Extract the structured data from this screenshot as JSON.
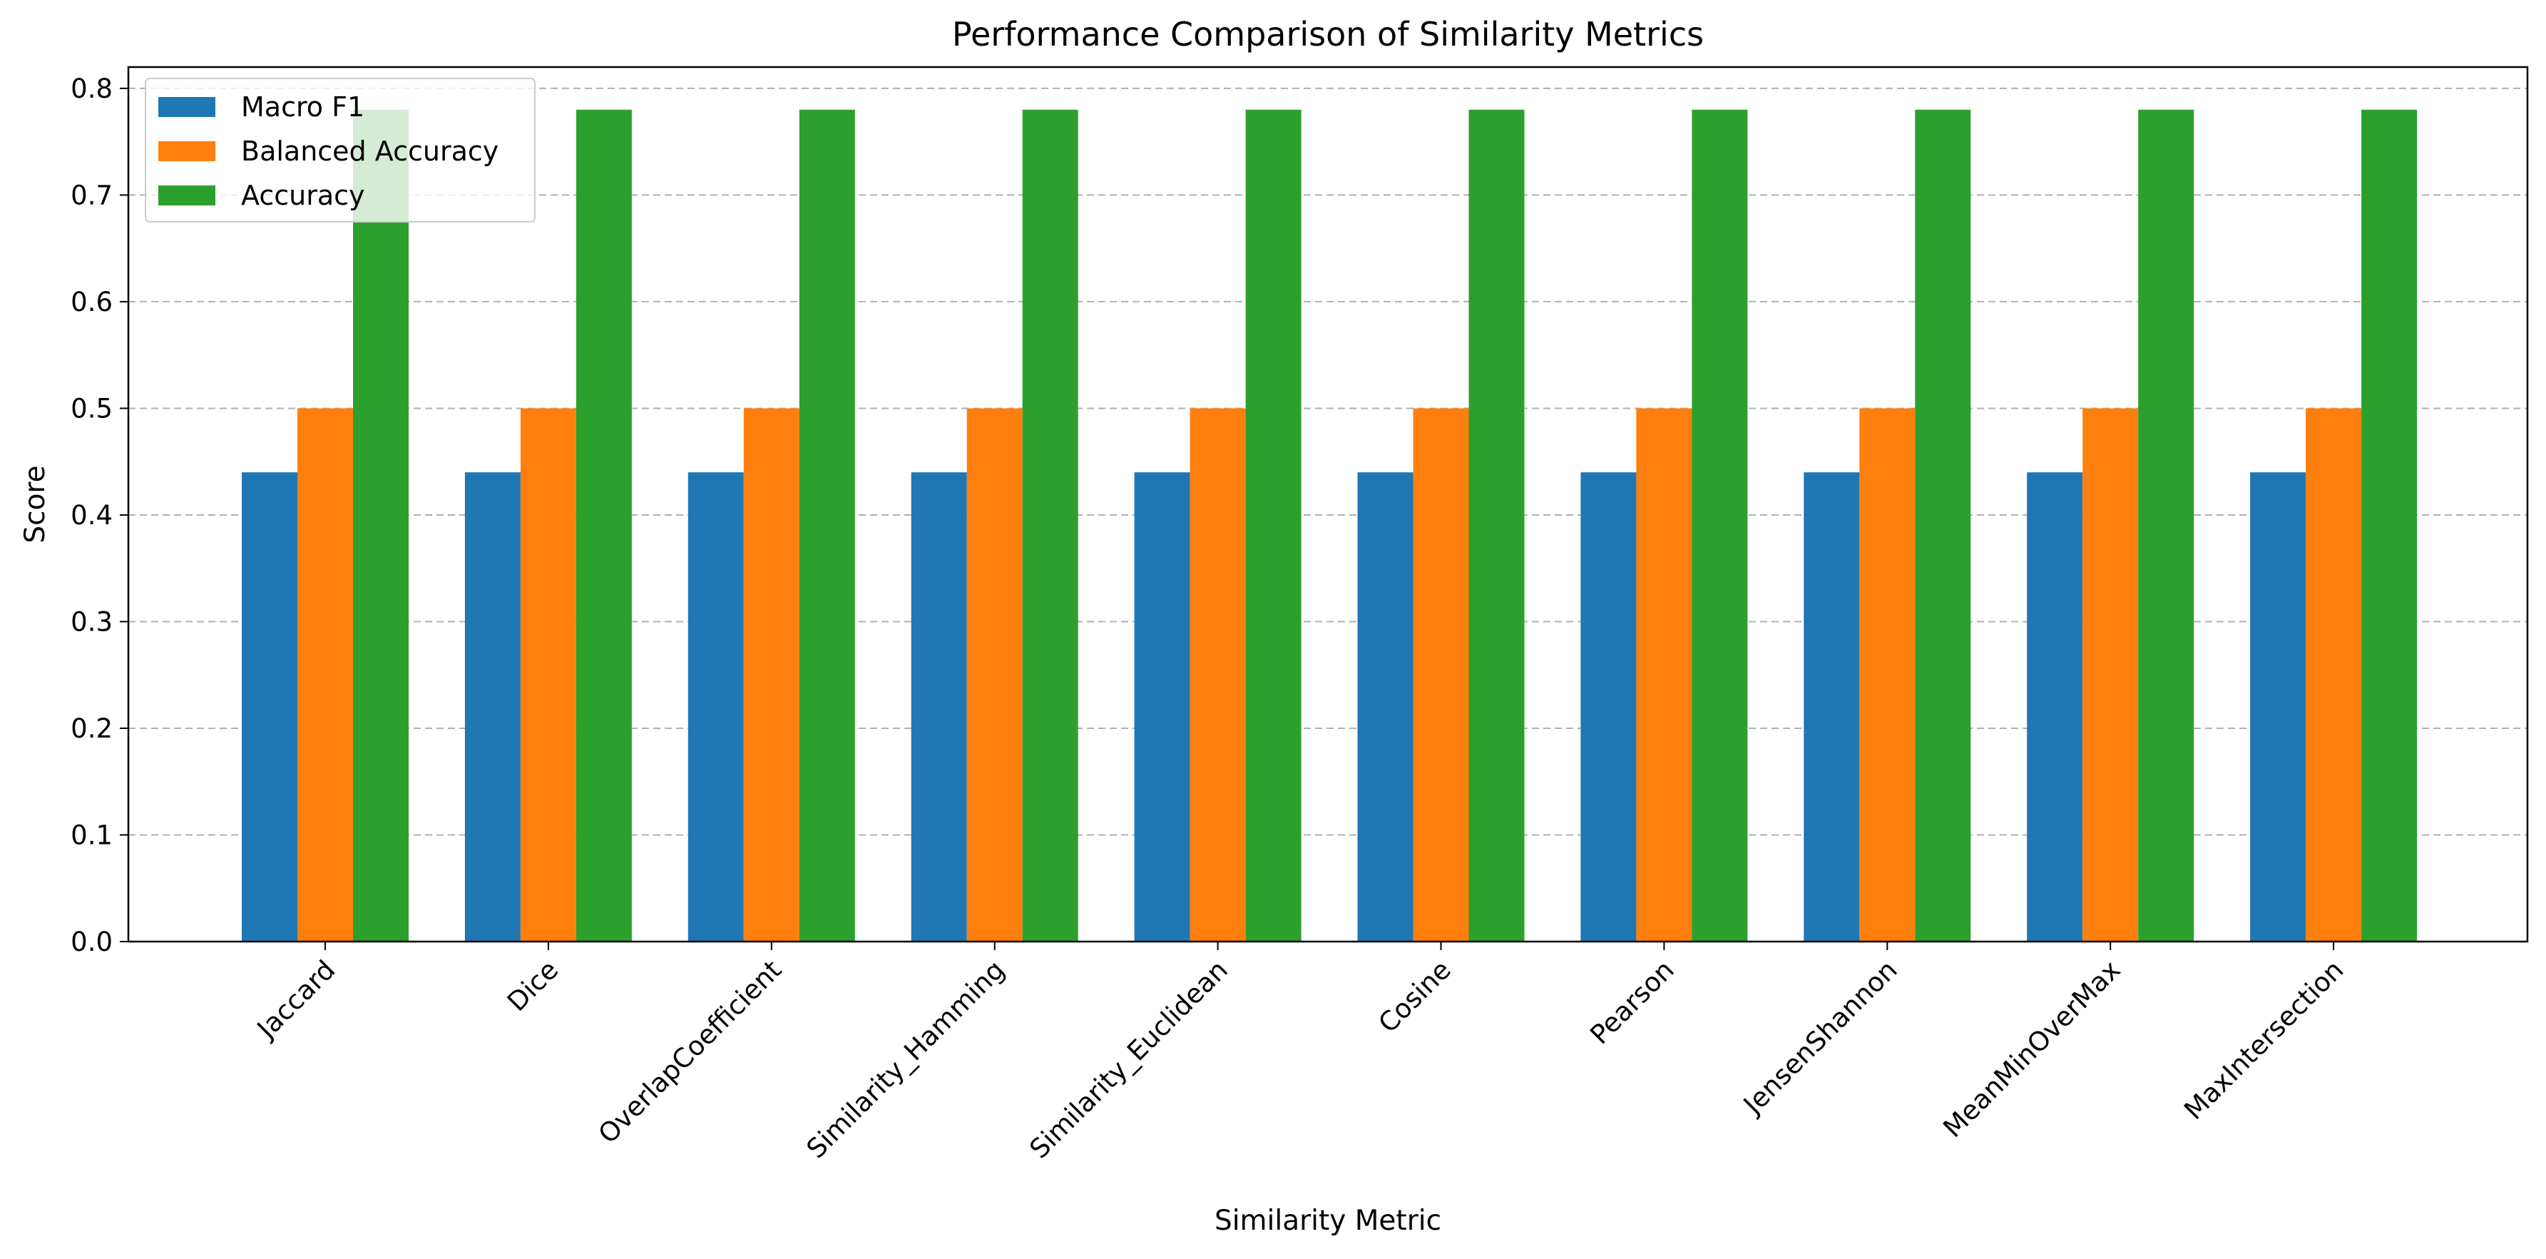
{
  "chart_data": {
    "type": "bar",
    "title": "Performance Comparison of Similarity Metrics",
    "xlabel": "Similarity Metric",
    "ylabel": "Score",
    "ylim": [
      0,
      0.82
    ],
    "yticks": [
      "0.0",
      "0.1",
      "0.2",
      "0.3",
      "0.4",
      "0.5",
      "0.6",
      "0.7",
      "0.8"
    ],
    "grid": "y-dashed",
    "legend_position": "top-left",
    "categories": [
      "Jaccard",
      "Dice",
      "OverlapCoefficient",
      "Similarity_Hamming",
      "Similarity_Euclidean",
      "Cosine",
      "Pearson",
      "JensenShannon",
      "MeanMinOverMax",
      "MaxIntersection"
    ],
    "series": [
      {
        "name": "Macro F1",
        "color": "#1f77b4",
        "values": [
          0.44,
          0.44,
          0.44,
          0.44,
          0.44,
          0.44,
          0.44,
          0.44,
          0.44,
          0.44
        ]
      },
      {
        "name": "Balanced Accuracy",
        "color": "#ff7f0e",
        "values": [
          0.5,
          0.5,
          0.5,
          0.5,
          0.5,
          0.5,
          0.5,
          0.5,
          0.5,
          0.5
        ]
      },
      {
        "name": "Accuracy",
        "color": "#2ca02c",
        "values": [
          0.78,
          0.78,
          0.78,
          0.78,
          0.78,
          0.78,
          0.78,
          0.78,
          0.78,
          0.78
        ]
      }
    ]
  }
}
